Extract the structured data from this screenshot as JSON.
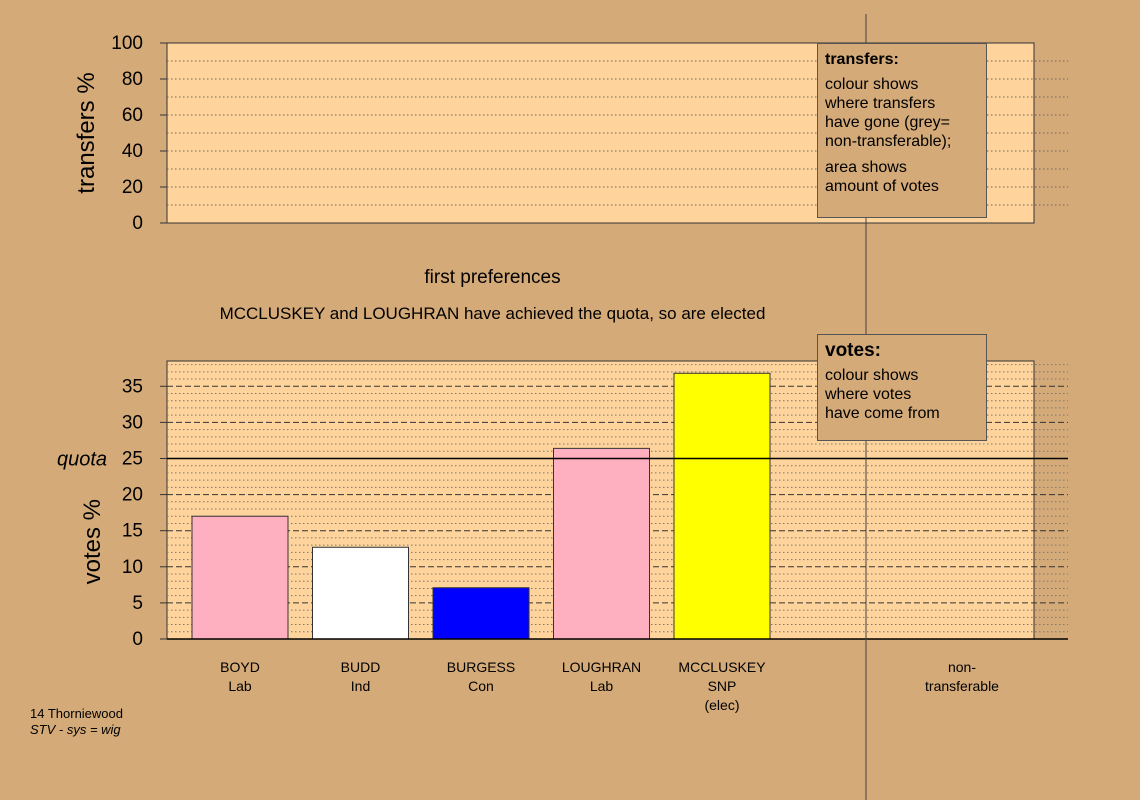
{
  "chart_data": [
    {
      "type": "bar",
      "id": "transfers",
      "ylabel": "transfers %",
      "ylim": [
        0,
        100
      ],
      "yticks": [
        0,
        20,
        40,
        60,
        80,
        100
      ],
      "series": [],
      "grid": true
    },
    {
      "type": "bar",
      "id": "votes",
      "title": "first preferences",
      "subtitle": "MCCLUSKEY and LOUGHRAN have achieved the quota, so are elected",
      "ylabel": "votes %",
      "ylim": [
        0,
        38.5
      ],
      "yticks": [
        0,
        5,
        10,
        15,
        20,
        25,
        30,
        35
      ],
      "quota": 25,
      "quota_label": "quota",
      "categories": [
        {
          "name": "BOYD",
          "party": "Lab",
          "extra": ""
        },
        {
          "name": "BUDD",
          "party": "Ind",
          "extra": ""
        },
        {
          "name": "BURGESS",
          "party": "Con",
          "extra": ""
        },
        {
          "name": "LOUGHRAN",
          "party": "Lab",
          "extra": ""
        },
        {
          "name": "MCCLUSKEY",
          "party": "SNP",
          "extra": "(elec)"
        }
      ],
      "values": [
        17.0,
        12.7,
        7.1,
        26.4,
        36.8
      ],
      "colors": [
        "#ffb0c0",
        "#ffffff",
        "#0000ff",
        "#ffb0c0",
        "#ffff00"
      ],
      "nontransferable_label": "non-transferable",
      "nontransferable_lines": [
        "non-",
        "transferable"
      ],
      "grid": true
    }
  ],
  "legend_transfers": {
    "title": "transfers:",
    "line1": "colour shows",
    "line2": "where transfers",
    "line3": "have gone (grey=",
    "line4": "non-transferable);",
    "line5": "area shows",
    "line6": "amount of votes"
  },
  "legend_votes": {
    "title": "votes:",
    "line1": "colour shows",
    "line2": "where votes",
    "line3": "have come from"
  },
  "footer": {
    "ward": "14 Thorniewood",
    "system": "STV - sys = wig"
  },
  "colors": {
    "background": "#d4aa78",
    "plot_area": "#fed49c"
  }
}
